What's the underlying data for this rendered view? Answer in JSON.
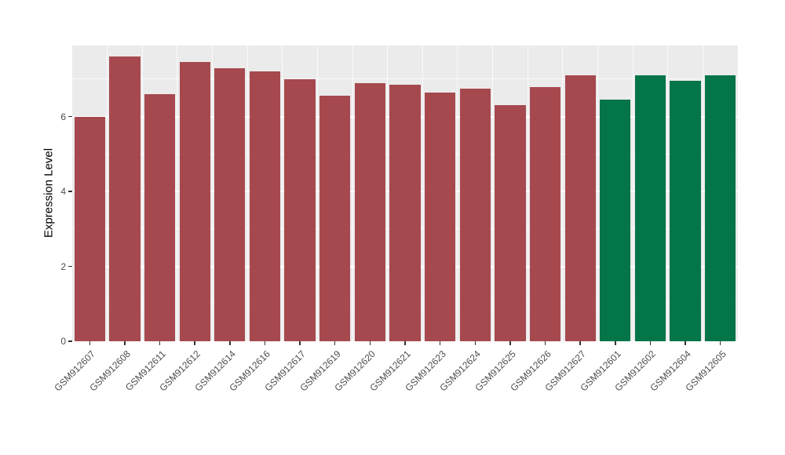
{
  "chart_data": {
    "type": "bar",
    "title": "",
    "xlabel": "",
    "ylabel": "Expression Level",
    "categories": [
      "GSM912607",
      "GSM912608",
      "GSM912611",
      "GSM912612",
      "GSM912614",
      "GSM912616",
      "GSM912617",
      "GSM912619",
      "GSM912620",
      "GSM912621",
      "GSM912623",
      "GSM912624",
      "GSM912625",
      "GSM912626",
      "GSM912627",
      "GSM912601",
      "GSM912602",
      "GSM912604",
      "GSM912605"
    ],
    "values": [
      6.0,
      7.6,
      6.6,
      7.45,
      7.3,
      7.2,
      7.0,
      6.55,
      6.9,
      6.85,
      6.65,
      6.75,
      6.3,
      6.8,
      7.1,
      6.45,
      7.1,
      6.95,
      7.1
    ],
    "bar_colors": [
      "#A6494F",
      "#A6494F",
      "#A6494F",
      "#A6494F",
      "#A6494F",
      "#A6494F",
      "#A6494F",
      "#A6494F",
      "#A6494F",
      "#A6494F",
      "#A6494F",
      "#A6494F",
      "#A6494F",
      "#A6494F",
      "#A6494F",
      "#047449",
      "#047449",
      "#047449",
      "#047449"
    ],
    "group_colors": {
      "maroon_group": "#A6494F",
      "green_group": "#047449"
    },
    "ylim": [
      0,
      7.9
    ],
    "yticks": [
      0,
      2,
      4,
      6
    ],
    "yticks_minor": [
      1,
      3,
      5,
      7
    ],
    "grid": true,
    "legend": "none",
    "panel_background": "#EBEBEB",
    "gridline_color": "#FFFFFF",
    "axis_text_color": "#4D4D4D",
    "tick_color": "#333333"
  }
}
